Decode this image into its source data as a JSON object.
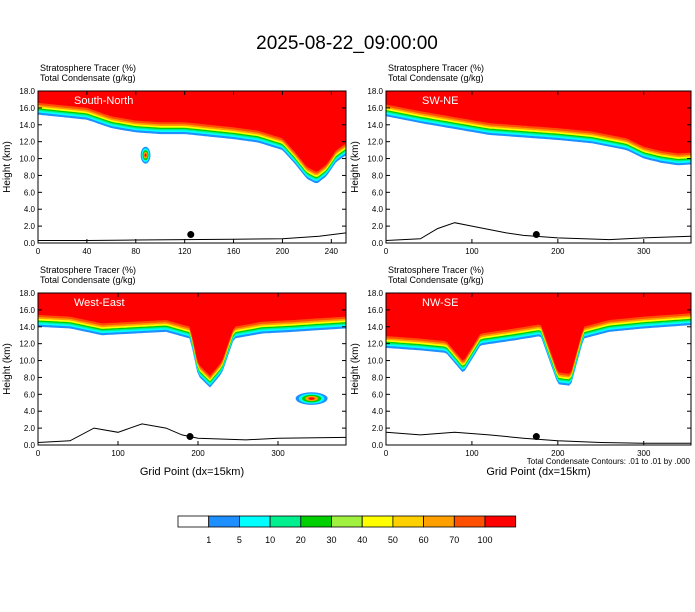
{
  "title": "2025-08-22_09:00:00",
  "chart_data": [
    {
      "type": "heatmap",
      "label": "South-North",
      "fields": [
        "Stratosphere Tracer   (%)",
        "Total Condensate   (g/kg)"
      ],
      "xlim": [
        0,
        252
      ],
      "xticks": [
        0,
        40,
        80,
        120,
        160,
        200,
        240
      ],
      "ylim": [
        0,
        18
      ],
      "yticks": [
        "0.0",
        "2.0",
        "4.0",
        "6.0",
        "8.0",
        "10.0",
        "12.0",
        "14.0",
        "16.0",
        "18.0"
      ],
      "ylabel": "Height (km)",
      "xlabel": "",
      "tropopause_base_km": [
        [
          0,
          15.2
        ],
        [
          20,
          14.9
        ],
        [
          40,
          14.6
        ],
        [
          60,
          13.6
        ],
        [
          80,
          13.1
        ],
        [
          100,
          12.9
        ],
        [
          120,
          12.9
        ],
        [
          140,
          12.6
        ],
        [
          160,
          12.3
        ],
        [
          180,
          11.9
        ],
        [
          200,
          11.0
        ],
        [
          210,
          9.4
        ],
        [
          220,
          7.6
        ],
        [
          228,
          7.0
        ],
        [
          236,
          7.9
        ],
        [
          244,
          9.6
        ],
        [
          252,
          10.4
        ]
      ],
      "plumes": [
        {
          "x": 88,
          "y": 10.4,
          "w": 8,
          "h": 2.0
        }
      ],
      "terrain_km": [
        [
          0,
          0.3
        ],
        [
          40,
          0.3
        ],
        [
          80,
          0.35
        ],
        [
          120,
          0.4
        ],
        [
          160,
          0.45
        ],
        [
          200,
          0.5
        ],
        [
          230,
          0.8
        ],
        [
          252,
          1.2
        ]
      ],
      "marker": {
        "x": 125,
        "y": 1.0
      }
    },
    {
      "type": "heatmap",
      "label": "SW-NE",
      "fields": [
        "Stratosphere Tracer   (%)",
        "Total Condensate   (g/kg)"
      ],
      "xlim": [
        0,
        355
      ],
      "xticks": [
        0,
        100,
        200,
        300
      ],
      "ylim": [
        0,
        18
      ],
      "yticks": [
        "0.0",
        "2.0",
        "4.0",
        "6.0",
        "8.0",
        "10.0",
        "12.0",
        "14.0",
        "16.0",
        "18.0"
      ],
      "ylabel": "Height (km)",
      "xlabel": "",
      "tropopause_base_km": [
        [
          0,
          15.0
        ],
        [
          40,
          14.2
        ],
        [
          80,
          13.5
        ],
        [
          120,
          12.8
        ],
        [
          160,
          12.5
        ],
        [
          200,
          12.2
        ],
        [
          240,
          11.8
        ],
        [
          280,
          11.0
        ],
        [
          300,
          10.0
        ],
        [
          320,
          9.5
        ],
        [
          340,
          9.2
        ],
        [
          355,
          9.3
        ]
      ],
      "plumes": [],
      "terrain_km": [
        [
          0,
          0.3
        ],
        [
          40,
          0.5
        ],
        [
          60,
          1.7
        ],
        [
          80,
          2.4
        ],
        [
          100,
          2.0
        ],
        [
          120,
          1.6
        ],
        [
          140,
          1.2
        ],
        [
          160,
          0.9
        ],
        [
          200,
          0.6
        ],
        [
          260,
          0.4
        ],
        [
          300,
          0.6
        ],
        [
          355,
          0.8
        ]
      ],
      "marker": {
        "x": 175,
        "y": 1.0
      }
    },
    {
      "type": "heatmap",
      "label": "West-East",
      "fields": [
        "Stratosphere Tracer   (%)",
        "Total Condensate   (g/kg)"
      ],
      "xlim": [
        0,
        385
      ],
      "xticks": [
        0,
        100,
        200,
        300
      ],
      "ylim": [
        0,
        18
      ],
      "yticks": [
        "0.0",
        "2.0",
        "4.0",
        "6.0",
        "8.0",
        "10.0",
        "12.0",
        "14.0",
        "16.0",
        "18.0"
      ],
      "ylabel": "Height (km)",
      "xlabel": "Grid Point (dx=15km)",
      "tropopause_base_km": [
        [
          0,
          14.0
        ],
        [
          40,
          13.8
        ],
        [
          80,
          13.0
        ],
        [
          120,
          13.2
        ],
        [
          160,
          13.4
        ],
        [
          190,
          12.6
        ],
        [
          200,
          8.2
        ],
        [
          215,
          6.8
        ],
        [
          230,
          8.5
        ],
        [
          245,
          12.6
        ],
        [
          280,
          13.2
        ],
        [
          320,
          13.4
        ],
        [
          350,
          13.6
        ],
        [
          385,
          13.8
        ]
      ],
      "plumes": [
        {
          "x": 342,
          "y": 5.5,
          "w": 40,
          "h": 1.5
        }
      ],
      "terrain_km": [
        [
          0,
          0.3
        ],
        [
          40,
          0.5
        ],
        [
          70,
          2.0
        ],
        [
          100,
          1.5
        ],
        [
          130,
          2.5
        ],
        [
          160,
          2.0
        ],
        [
          180,
          1.2
        ],
        [
          200,
          0.8
        ],
        [
          260,
          0.6
        ],
        [
          300,
          0.8
        ],
        [
          385,
          0.9
        ]
      ],
      "marker": {
        "x": 190,
        "y": 1.0
      }
    },
    {
      "type": "heatmap",
      "label": "NW-SE",
      "fields": [
        "Stratosphere Tracer   (%)",
        "Total Condensate   (g/kg)"
      ],
      "xlim": [
        0,
        355
      ],
      "xticks": [
        0,
        100,
        200,
        300
      ],
      "ylim": [
        0,
        18
      ],
      "yticks": [
        "0.0",
        "2.0",
        "4.0",
        "6.0",
        "8.0",
        "10.0",
        "12.0",
        "14.0",
        "16.0",
        "18.0"
      ],
      "ylabel": "Height (km)",
      "xlabel": "Grid Point (dx=15km)",
      "tropopause_base_km": [
        [
          0,
          11.5
        ],
        [
          40,
          11.2
        ],
        [
          70,
          10.9
        ],
        [
          90,
          8.5
        ],
        [
          110,
          11.8
        ],
        [
          150,
          12.4
        ],
        [
          180,
          12.9
        ],
        [
          200,
          7.2
        ],
        [
          215,
          7.0
        ],
        [
          230,
          12.6
        ],
        [
          260,
          13.4
        ],
        [
          300,
          13.8
        ],
        [
          355,
          14.2
        ]
      ],
      "plumes": [],
      "terrain_km": [
        [
          0,
          1.5
        ],
        [
          40,
          1.2
        ],
        [
          80,
          1.5
        ],
        [
          120,
          1.2
        ],
        [
          160,
          0.8
        ],
        [
          200,
          0.5
        ],
        [
          250,
          0.3
        ],
        [
          300,
          0.2
        ],
        [
          355,
          0.2
        ]
      ],
      "marker": {
        "x": 175,
        "y": 1.0
      }
    }
  ],
  "footnote": "Total Condensate Contours: .01 to .01 by .000",
  "colorbar": {
    "colors": [
      "#ffffff",
      "#1e8fff",
      "#00ffff",
      "#00f090",
      "#00d000",
      "#a0f040",
      "#ffff00",
      "#ffd000",
      "#ffa000",
      "#ff5000",
      "#ff0000"
    ],
    "labels": [
      "1",
      "5",
      "10",
      "20",
      "30",
      "40",
      "50",
      "60",
      "70",
      "100"
    ]
  }
}
